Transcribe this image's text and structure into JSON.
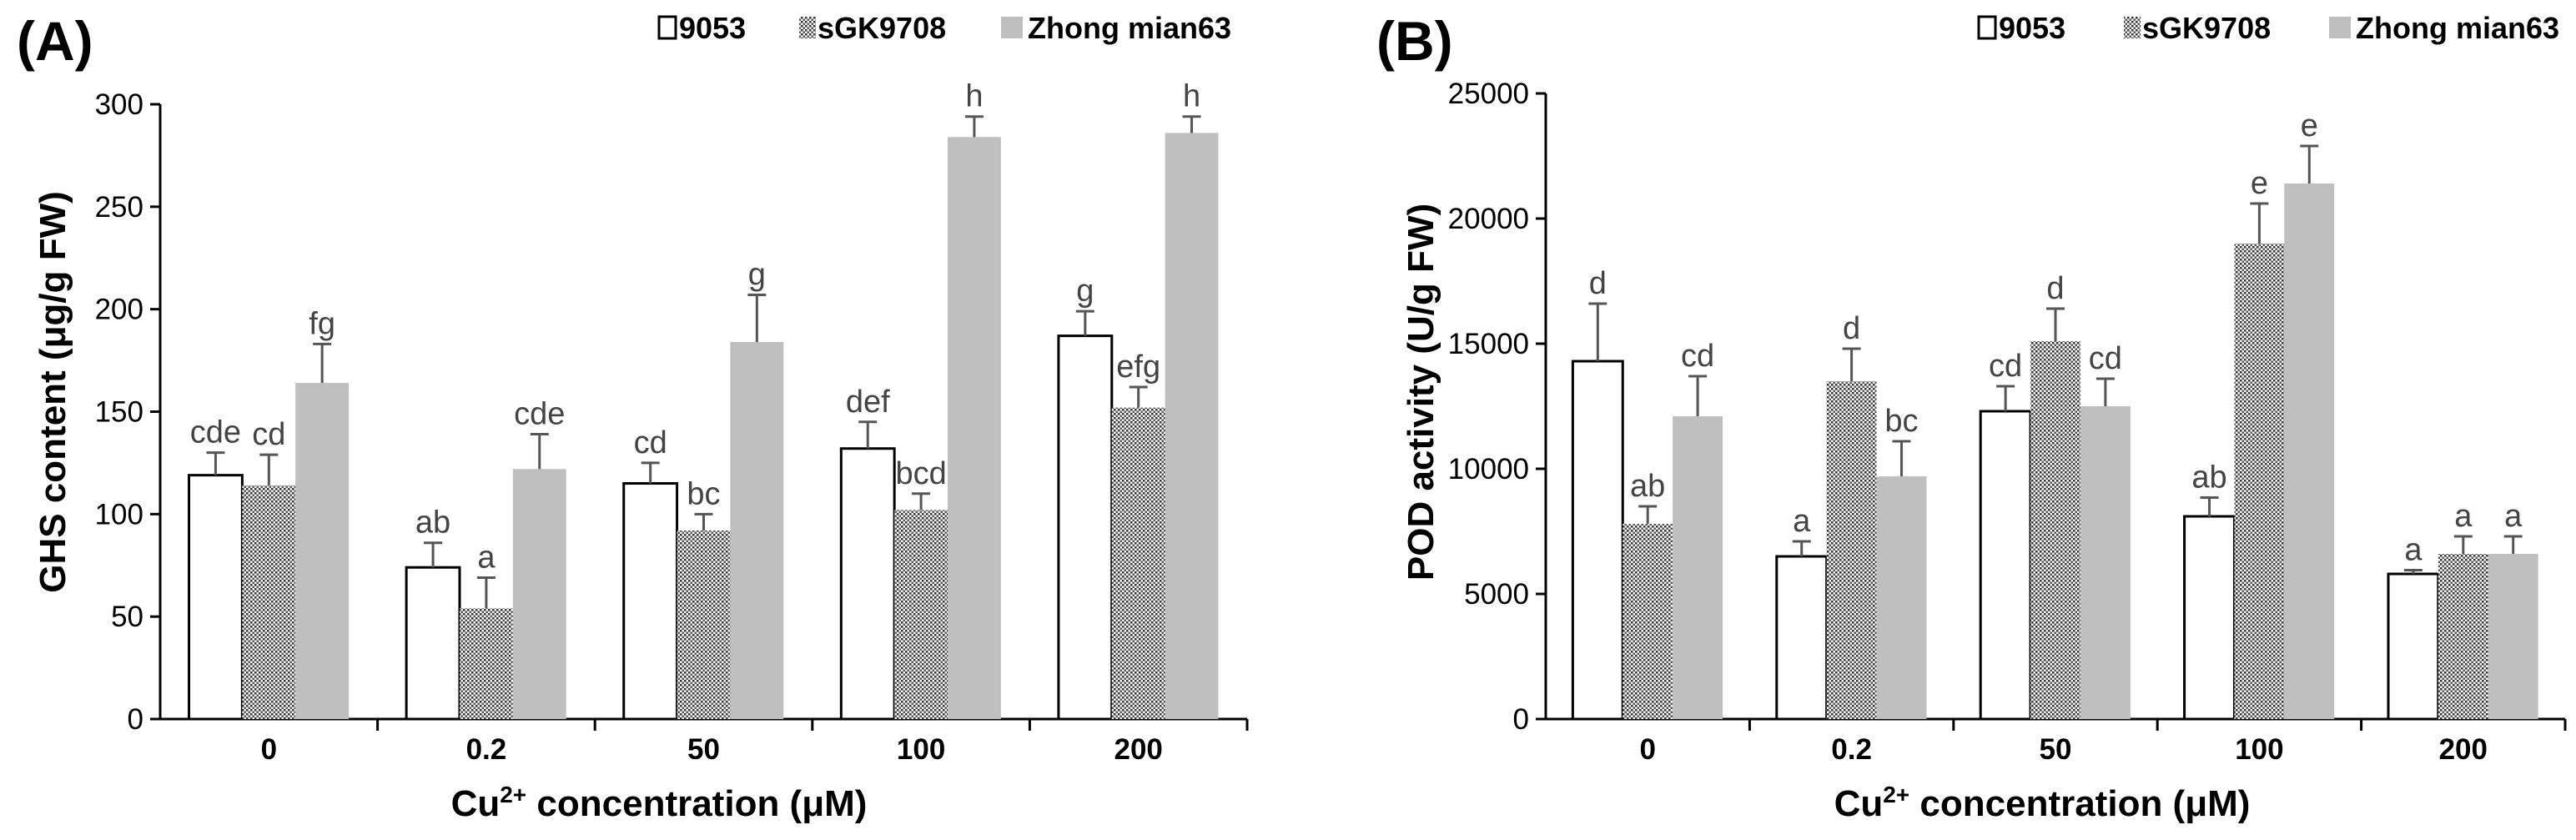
{
  "legend_items": [
    {
      "name": "9053",
      "style": "white"
    },
    {
      "name": "sGK9708",
      "style": "dotted"
    },
    {
      "name": "Zhong mian63",
      "style": "gray"
    }
  ],
  "colors": {
    "white_fill": "#ffffff",
    "gray_fill": "#bfbfbf",
    "dot_color": "#333333",
    "bar_stroke": "#000000"
  },
  "chart_data": [
    {
      "type": "bar",
      "panel_label": "(A)",
      "ylabel": "GHS content (μg/g FW)",
      "xlabel_main": "Cu",
      "xlabel_sup": "2+",
      "xlabel_rest": " concentration (μM)",
      "categories": [
        "0",
        "0.2",
        "50",
        "100",
        "200"
      ],
      "ylim": [
        0,
        300
      ],
      "yticks": [
        0,
        50,
        100,
        150,
        200,
        250,
        300
      ],
      "series": [
        {
          "name": "9053",
          "values": [
            119,
            74,
            115,
            132,
            187
          ],
          "errors": [
            11,
            12,
            10,
            13,
            12
          ],
          "labels": [
            "cde",
            "ab",
            "cd",
            "def",
            "g"
          ]
        },
        {
          "name": "sGK9708",
          "values": [
            114,
            54,
            92,
            102,
            152
          ],
          "errors": [
            15,
            15,
            8,
            8,
            10
          ],
          "labels": [
            "cd",
            "a",
            "bc",
            "bcd",
            "efg"
          ]
        },
        {
          "name": "Zhong mian63",
          "values": [
            164,
            122,
            184,
            284,
            286
          ],
          "errors": [
            19,
            17,
            23,
            10,
            8
          ],
          "labels": [
            "fg",
            "cde",
            "g",
            "h",
            "h"
          ]
        }
      ]
    },
    {
      "type": "bar",
      "panel_label": "(B)",
      "ylabel": "POD activity (U/g FW)",
      "xlabel_main": "Cu",
      "xlabel_sup": "2+",
      "xlabel_rest": " concentration (μM)",
      "categories": [
        "0",
        "0.2",
        "50",
        "100",
        "200"
      ],
      "ylim": [
        0,
        25000
      ],
      "yticks": [
        0,
        5000,
        10000,
        15000,
        20000,
        25000
      ],
      "series": [
        {
          "name": "9053",
          "values": [
            14300,
            6500,
            12300,
            8100,
            5800
          ],
          "errors": [
            2300,
            600,
            1000,
            750,
            150
          ],
          "labels": [
            "d",
            "a",
            "cd",
            "ab",
            "a"
          ]
        },
        {
          "name": "sGK9708",
          "values": [
            7800,
            13500,
            15100,
            19000,
            6600
          ],
          "errors": [
            700,
            1300,
            1300,
            1600,
            700
          ],
          "labels": [
            "ab",
            "d",
            "d",
            "e",
            "a"
          ]
        },
        {
          "name": "Zhong mian63",
          "values": [
            12100,
            9700,
            12500,
            21400,
            6600
          ],
          "errors": [
            1600,
            1400,
            1100,
            1500,
            700
          ],
          "labels": [
            "cd",
            "bc",
            "cd",
            "e",
            "a"
          ]
        }
      ]
    }
  ]
}
